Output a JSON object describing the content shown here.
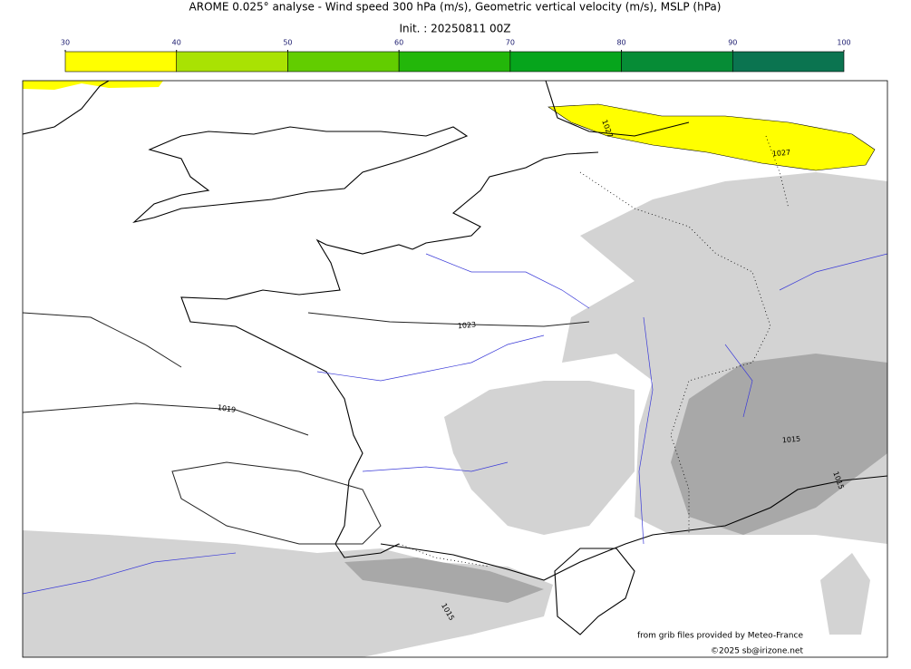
{
  "header": {
    "title": "AROME 0.025° analyse - Wind speed 300 hPa (m/s), Geometric vertical velocity (m/s), MSLP (hPa)",
    "subtitle": "Init. : 20250811 00Z"
  },
  "colorbar": {
    "ticks": [
      30,
      40,
      50,
      60,
      70,
      80,
      90,
      100
    ],
    "colors": [
      "#ffff00",
      "#a9e203",
      "#62cd00",
      "#23b70a",
      "#06a51c",
      "#068c36",
      "#0b7450"
    ]
  },
  "isobars": {
    "labels": [
      1027,
      1027,
      1023,
      1019,
      1015,
      1015,
      1015
    ]
  },
  "footer": {
    "source": "from grib files provided by Meteo-France",
    "copyright": "©2025 sb@irizone.net"
  }
}
